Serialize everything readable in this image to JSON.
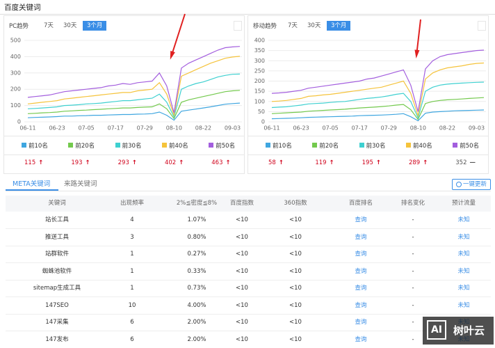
{
  "header": {
    "title": "百度关键词"
  },
  "range_tabs": [
    "7天",
    "30天",
    "3个月"
  ],
  "selected_range": 2,
  "chart_data": [
    {
      "type": "line",
      "label": "PC趋势",
      "categories": [
        "06-11",
        null,
        null,
        null,
        "06-23",
        null,
        null,
        null,
        "07-05",
        null,
        null,
        null,
        "07-17",
        null,
        null,
        null,
        "07-29",
        null,
        null,
        null,
        "08-10",
        null,
        null,
        null,
        "08-22",
        null,
        null,
        null,
        "09-03",
        null
      ],
      "ylim": [
        0,
        500
      ],
      "yticks": [
        0,
        100,
        200,
        300,
        400,
        500
      ],
      "grid": true,
      "series": [
        {
          "name": "前10名",
          "color": "#3fa6e0",
          "values": [
            25,
            27,
            28,
            30,
            32,
            35,
            35,
            37,
            38,
            40,
            40,
            42,
            43,
            45,
            45,
            47,
            48,
            50,
            60,
            40,
            10,
            65,
            72,
            78,
            85,
            92,
            100,
            108,
            112,
            115
          ]
        },
        {
          "name": "前20名",
          "color": "#73c94d",
          "values": [
            50,
            52,
            55,
            57,
            60,
            65,
            67,
            70,
            72,
            75,
            77,
            80,
            82,
            85,
            85,
            88,
            90,
            92,
            110,
            80,
            20,
            120,
            135,
            145,
            155,
            165,
            175,
            185,
            190,
            193
          ]
        },
        {
          "name": "前30名",
          "color": "#3ed0d0",
          "values": [
            80,
            82,
            85,
            88,
            92,
            100,
            102,
            105,
            110,
            112,
            115,
            120,
            125,
            130,
            130,
            135,
            140,
            145,
            170,
            120,
            30,
            200,
            220,
            235,
            245,
            260,
            275,
            285,
            292,
            293
          ]
        },
        {
          "name": "前40名",
          "color": "#f5c33b",
          "values": [
            110,
            115,
            120,
            125,
            130,
            140,
            145,
            150,
            155,
            160,
            165,
            170,
            175,
            180,
            180,
            190,
            195,
            200,
            240,
            170,
            40,
            280,
            300,
            320,
            340,
            360,
            375,
            390,
            398,
            402
          ]
        },
        {
          "name": "前50名",
          "color": "#a35ede",
          "values": [
            150,
            155,
            160,
            165,
            175,
            185,
            190,
            195,
            200,
            205,
            210,
            220,
            225,
            235,
            230,
            240,
            245,
            250,
            300,
            220,
            55,
            330,
            360,
            380,
            400,
            420,
            440,
            455,
            460,
            463
          ]
        }
      ],
      "totals": [
        115,
        193,
        293,
        402,
        463
      ],
      "totals_trend": [
        "↑",
        "↑",
        "↑",
        "↑",
        "↑"
      ]
    },
    {
      "type": "line",
      "label": "移动趋势",
      "categories": [
        "06-11",
        null,
        null,
        null,
        "06-23",
        null,
        null,
        null,
        "07-05",
        null,
        null,
        null,
        "07-17",
        null,
        null,
        null,
        "07-29",
        null,
        null,
        null,
        "08-10",
        null,
        null,
        null,
        "08-22",
        null,
        null,
        null,
        "09-03",
        null
      ],
      "ylim": [
        0,
        400
      ],
      "yticks": [
        0,
        50,
        100,
        150,
        200,
        250,
        300,
        350,
        400
      ],
      "grid": true,
      "series": [
        {
          "name": "前10名",
          "color": "#3fa6e0",
          "values": [
            15,
            16,
            17,
            18,
            20,
            22,
            23,
            24,
            25,
            26,
            27,
            28,
            30,
            31,
            32,
            33,
            35,
            37,
            40,
            25,
            5,
            42,
            48,
            50,
            52,
            54,
            55,
            56,
            57,
            58
          ]
        },
        {
          "name": "前20名",
          "color": "#73c94d",
          "values": [
            40,
            42,
            44,
            46,
            48,
            52,
            54,
            56,
            58,
            60,
            62,
            65,
            68,
            70,
            72,
            75,
            78,
            82,
            85,
            60,
            12,
            90,
            100,
            105,
            108,
            110,
            112,
            115,
            117,
            119
          ]
        },
        {
          "name": "前30名",
          "color": "#3ed0d0",
          "values": [
            70,
            72,
            74,
            78,
            82,
            88,
            90,
            92,
            95,
            98,
            100,
            105,
            110,
            115,
            118,
            122,
            128,
            135,
            140,
            100,
            20,
            150,
            170,
            180,
            185,
            188,
            190,
            192,
            194,
            195
          ]
        },
        {
          "name": "前40名",
          "color": "#f5c33b",
          "values": [
            100,
            102,
            105,
            110,
            115,
            125,
            128,
            132,
            135,
            140,
            145,
            150,
            155,
            160,
            165,
            170,
            180,
            190,
            200,
            140,
            30,
            210,
            240,
            255,
            265,
            270,
            275,
            282,
            287,
            289
          ]
        },
        {
          "name": "前50名",
          "color": "#a35ede",
          "values": [
            140,
            142,
            145,
            150,
            155,
            165,
            170,
            175,
            180,
            185,
            190,
            195,
            200,
            210,
            215,
            225,
            235,
            245,
            255,
            180,
            50,
            260,
            300,
            320,
            330,
            335,
            340,
            345,
            350,
            352
          ]
        }
      ],
      "totals": [
        58,
        119,
        195,
        289,
        352
      ],
      "totals_trend": [
        "↑",
        "↑",
        "↑",
        "↑",
        "—"
      ]
    }
  ],
  "tabs": [
    "META关键词",
    "来路关键词"
  ],
  "active_tab": 0,
  "refresh_button": "一键更新",
  "table": {
    "columns": [
      "关键词",
      "出现频率",
      "2%≦密度≦8%",
      "百度指数",
      "360指数",
      "百度排名",
      "排名变化",
      "预计流量"
    ],
    "rows": [
      [
        "站长工具",
        4,
        "1.07%",
        "<10",
        "<10",
        "查询",
        "-",
        "未知"
      ],
      [
        "推送工具",
        3,
        "0.80%",
        "<10",
        "<10",
        "查询",
        "-",
        "未知"
      ],
      [
        "站群软件",
        1,
        "0.27%",
        "<10",
        "<10",
        "查询",
        "-",
        "未知"
      ],
      [
        "蜘蛛池软件",
        1,
        "0.33%",
        "<10",
        "<10",
        "查询",
        "-",
        "未知"
      ],
      [
        "sitemap生成工具",
        1,
        "0.73%",
        "<10",
        "<10",
        "查询",
        "-",
        "未知"
      ],
      [
        "147SEO",
        10,
        "4.00%",
        "<10",
        "<10",
        "查询",
        "-",
        "未知"
      ],
      [
        "147采集",
        6,
        "2.00%",
        "<10",
        "<10",
        "查询",
        "-",
        "未知"
      ],
      [
        "147发布",
        6,
        "2.00%",
        "<10",
        "<10",
        "查询",
        "-",
        "未知"
      ]
    ]
  },
  "watermark": {
    "logo": "AI",
    "text": "树叶云"
  }
}
